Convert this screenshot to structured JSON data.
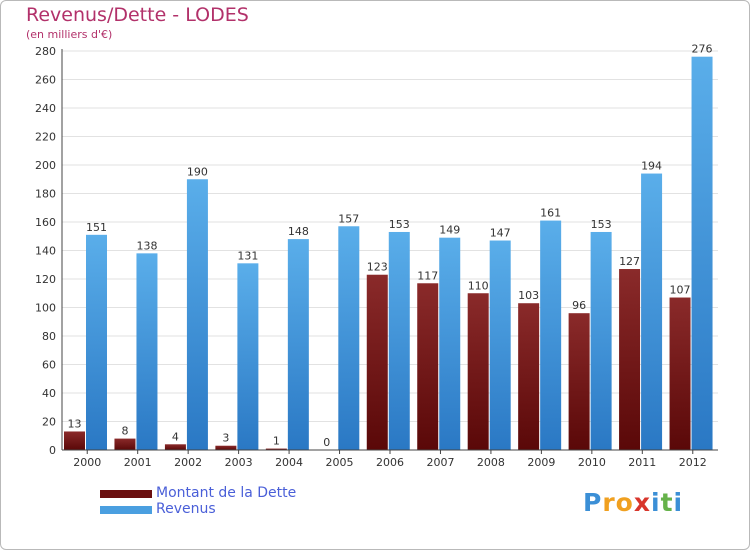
{
  "chart_data": {
    "type": "bar",
    "title": "Revenus/Dette - LODES",
    "subtitle": "(en milliers d'€)",
    "categories": [
      "2000",
      "2001",
      "2002",
      "2003",
      "2004",
      "2005",
      "2006",
      "2007",
      "2008",
      "2009",
      "2010",
      "2011",
      "2012"
    ],
    "series": [
      {
        "name": "Montant de la Dette",
        "color": "#7a1414",
        "values": [
          13,
          8,
          4,
          3,
          1,
          0,
          123,
          117,
          110,
          103,
          96,
          127,
          107
        ]
      },
      {
        "name": "Revenus",
        "color": "#4a9fe0",
        "values": [
          151,
          138,
          190,
          131,
          148,
          157,
          153,
          149,
          147,
          161,
          153,
          194,
          276
        ]
      }
    ],
    "data_labels": {
      "Montant de la Dette": [
        "13",
        "8",
        "4",
        "3",
        "1",
        "0",
        "123",
        "117",
        "110",
        "103",
        "96",
        "127",
        "107"
      ],
      "Revenus": [
        "151",
        "138",
        "190",
        "131",
        "148",
        "157",
        "153",
        "149",
        "147",
        "161",
        "153",
        "194",
        "276"
      ]
    },
    "ylim": [
      0,
      280
    ],
    "yticks": [
      0,
      20,
      40,
      60,
      80,
      100,
      120,
      140,
      160,
      180,
      200,
      220,
      240,
      260,
      280
    ],
    "grid": true,
    "legend": "bottom-left"
  },
  "logo": {
    "text": "Proxiti",
    "letters": [
      "P",
      "r",
      "o",
      "x",
      "i",
      "t",
      "i"
    ],
    "colors": [
      "#3b8fd6",
      "#f0a020",
      "#f0a020",
      "#d8362c",
      "#3b8fd6",
      "#66b24a",
      "#3b8fd6"
    ]
  }
}
